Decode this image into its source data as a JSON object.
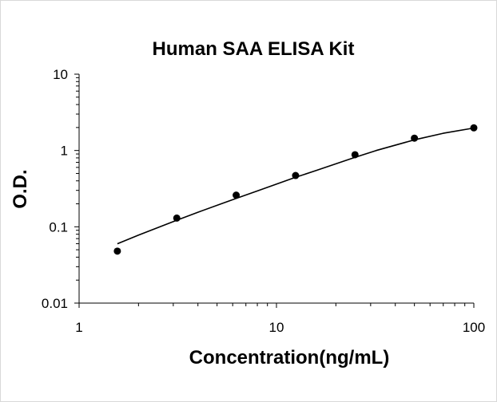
{
  "chart_data": {
    "type": "scatter",
    "title": "Human SAA ELISA Kit",
    "xlabel": "Concentration(ng/mL)",
    "ylabel": "O.D.",
    "xscale": "log",
    "yscale": "log",
    "xlim": [
      1,
      100
    ],
    "ylim": [
      0.01,
      10
    ],
    "xticks": [
      "1",
      "10",
      "100"
    ],
    "yticks": [
      "0.01",
      "0.1",
      "1",
      "10"
    ],
    "grid": false,
    "legend": "none",
    "series": [
      {
        "type": "scatter",
        "x": [
          1.5625,
          3.125,
          6.25,
          12.5,
          25,
          50,
          100
        ],
        "y": [
          0.048,
          0.13,
          0.26,
          0.47,
          0.88,
          1.45,
          1.98
        ]
      },
      {
        "type": "line",
        "x": [
          1.5625,
          2,
          3.125,
          4,
          6.25,
          8,
          12.5,
          16,
          25,
          32,
          50,
          70,
          100
        ],
        "y": [
          0.06,
          0.078,
          0.122,
          0.155,
          0.236,
          0.295,
          0.445,
          0.55,
          0.815,
          1.0,
          1.38,
          1.68,
          1.97
        ]
      }
    ],
    "colors": {
      "marker": "#000000",
      "line": "#000000",
      "axis": "#000000"
    }
  }
}
